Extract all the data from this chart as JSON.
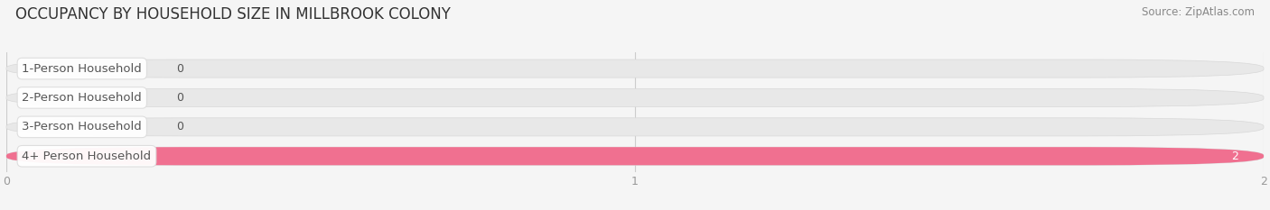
{
  "title": "OCCUPANCY BY HOUSEHOLD SIZE IN MILLBROOK COLONY",
  "source": "Source: ZipAtlas.com",
  "categories": [
    "1-Person Household",
    "2-Person Household",
    "3-Person Household",
    "4+ Person Household"
  ],
  "values": [
    0,
    0,
    0,
    2
  ],
  "bar_colors": [
    "#c9a0c8",
    "#6ec4bc",
    "#a8a8d8",
    "#f07090"
  ],
  "track_color": "#e8e8e8",
  "track_edge_color": "#d8d8d8",
  "xlim": [
    0,
    2
  ],
  "xticks": [
    0,
    1,
    2
  ],
  "background_color": "#f5f5f5",
  "bar_height": 0.62,
  "title_fontsize": 12,
  "label_fontsize": 9.5,
  "value_fontsize": 9,
  "text_color": "#555555",
  "tick_color": "#999999",
  "source_fontsize": 8.5,
  "grid_color": "#cccccc"
}
